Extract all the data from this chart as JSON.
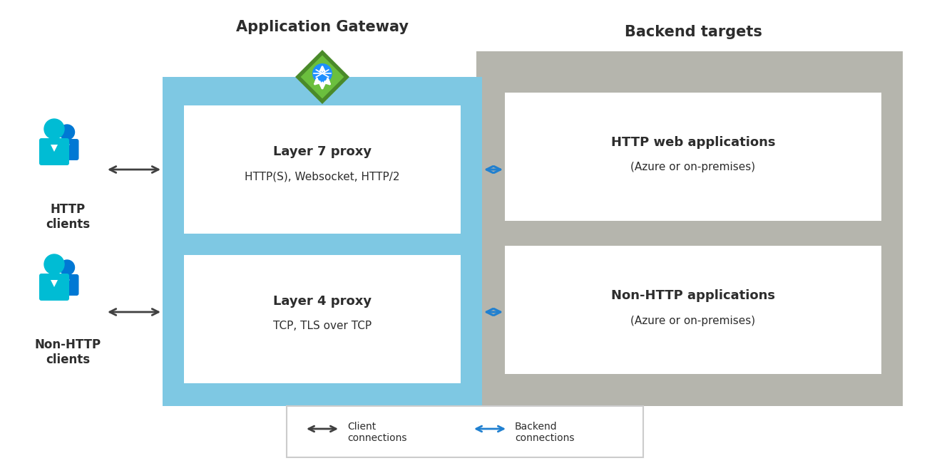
{
  "title_gateway": "Application Gateway",
  "title_backend": "Backend targets",
  "layer7_title": "Layer 7 proxy",
  "layer7_sub": "HTTP(S), Websocket, HTTP/2",
  "layer4_title": "Layer 4 proxy",
  "layer4_sub": "TCP, TLS over TCP",
  "http_backend_title": "HTTP web applications",
  "http_backend_sub": "(Azure or on-premises)",
  "nonhttp_backend_title": "Non-HTTP applications",
  "nonhttp_backend_sub": "(Azure or on-premises)",
  "http_client_label": "HTTP\nclients",
  "nonhttp_client_label": "Non-HTTP\nclients",
  "legend_client": "Client\nconnections",
  "legend_backend": "Backend\nconnections",
  "bg_color": "#ffffff",
  "gateway_box_color": "#7EC8E3",
  "backend_box_color": "#B5B5AD",
  "inner_box_color": "#ffffff",
  "arrow_black": "#404040",
  "arrow_blue": "#2080D0",
  "person_light": "#00BCD4",
  "person_dark": "#0078D4",
  "diamond_green_outer": "#4A8A2A",
  "diamond_green_inner": "#6BBF3E",
  "text_color": "#2D2D2D",
  "legend_border": "#CCCCCC"
}
